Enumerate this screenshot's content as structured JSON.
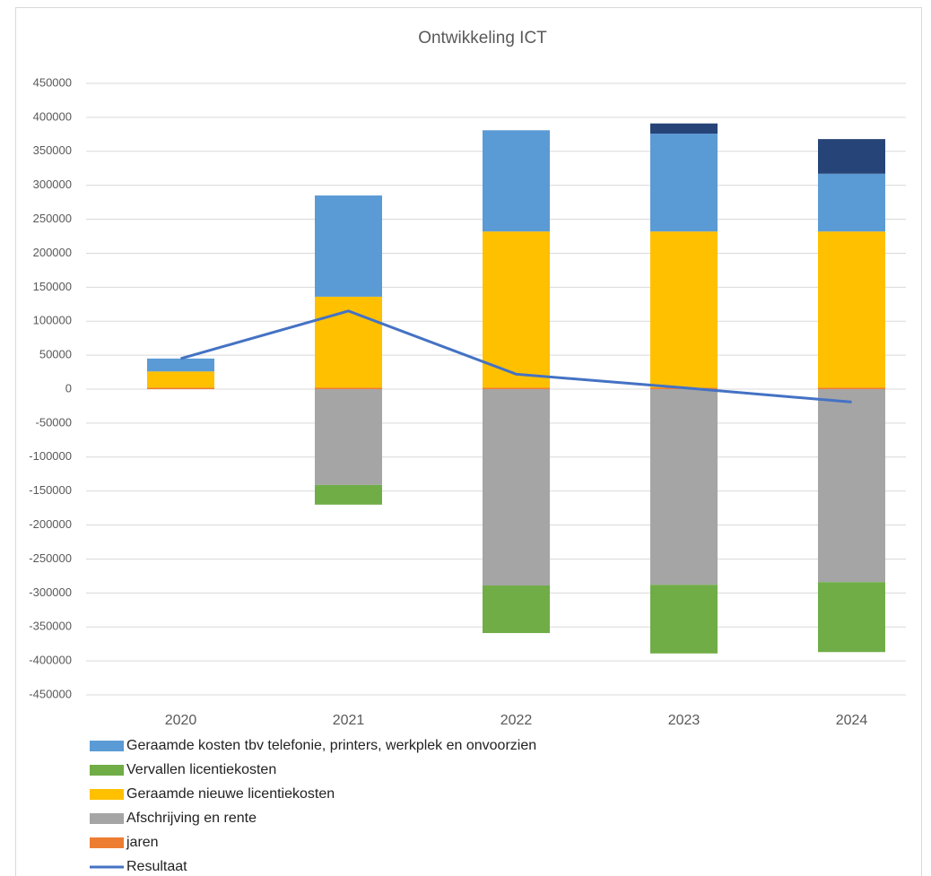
{
  "chart_data": {
    "type": "bar",
    "stacked": true,
    "title": "Ontwikkeling ICT",
    "categories": [
      "2020",
      "2021",
      "2022",
      "2023",
      "2024"
    ],
    "ylim": [
      -450000,
      450000
    ],
    "yticks": [
      -450000,
      -400000,
      -350000,
      -300000,
      -250000,
      -200000,
      -150000,
      -100000,
      -50000,
      0,
      50000,
      100000,
      150000,
      200000,
      250000,
      300000,
      350000,
      400000,
      450000
    ],
    "grid": true,
    "series": [
      {
        "name": null,
        "color": "#264478",
        "values": [
          0,
          0,
          0,
          15000,
          51000
        ]
      },
      {
        "name": "Geraamde kosten tbv telefonie, printers, werkplek en onvoorzien",
        "color": "#5b9bd5",
        "values": [
          19000,
          149000,
          149000,
          144000,
          85000
        ]
      },
      {
        "name": "Vervallen licentiekosten",
        "color": "#70ad47",
        "values": [
          0,
          -29000,
          -70000,
          -101000,
          -103000
        ]
      },
      {
        "name": "Geraamde nieuwe licentiekosten",
        "color": "#ffc000",
        "values": [
          24000,
          134000,
          230000,
          230000,
          230000
        ]
      },
      {
        "name": "Afschrijving en rente",
        "color": "#a5a5a5",
        "values": [
          0,
          -141000,
          -289000,
          -288000,
          -284000
        ]
      },
      {
        "name": "jaren",
        "color": "#ed7d31",
        "values": [
          2020,
          2021,
          2022,
          2023,
          2024
        ]
      },
      {
        "name": "Resultaat",
        "type": "line",
        "color": "#4472c4",
        "values": [
          45000,
          115000,
          22000,
          2000,
          -19000
        ]
      }
    ]
  }
}
